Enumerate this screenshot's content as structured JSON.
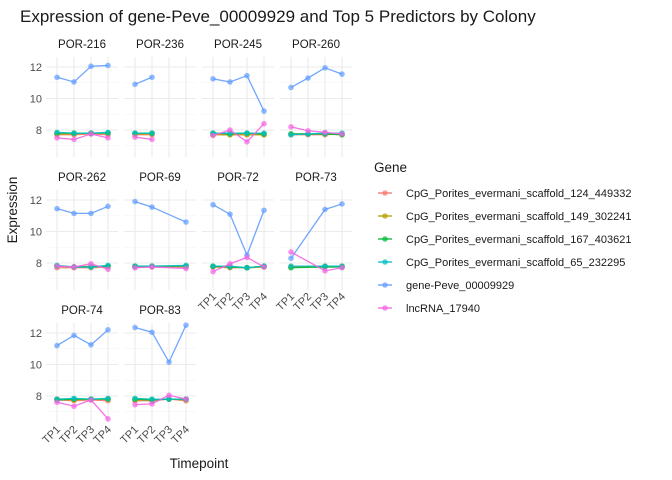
{
  "chart_data": {
    "type": "line",
    "title": "Expression of gene-Peve_00009929 and Top 5 Predictors by Colony",
    "xlabel": "Timepoint",
    "ylabel": "Expression",
    "x": [
      "TP1",
      "TP2",
      "TP3",
      "TP4"
    ],
    "yticks": [
      8,
      10,
      12
    ],
    "ylim": [
      6.3,
      12.65
    ],
    "grid": true,
    "legend": {
      "title": "Gene",
      "placement": "right"
    },
    "genes": [
      {
        "name": "CpG_Porites_evermani_scaffold_124_449332",
        "color": "#F8766D"
      },
      {
        "name": "CpG_Porites_evermani_scaffold_149_302241",
        "color": "#B79F00"
      },
      {
        "name": "CpG_Porites_evermani_scaffold_167_403621",
        "color": "#00BA38"
      },
      {
        "name": "CpG_Porites_evermani_scaffold_65_232295",
        "color": "#00BFC4"
      },
      {
        "name": "gene-Peve_00009929",
        "color": "#619CFF"
      },
      {
        "name": "lncRNA_17940",
        "color": "#F564E3"
      }
    ],
    "panels": [
      {
        "colony": "POR-216",
        "values": [
          [
            7.7,
            7.7,
            7.75,
            7.7
          ],
          [
            7.75,
            7.75,
            7.8,
            7.8
          ],
          [
            7.8,
            7.8,
            7.8,
            7.8
          ],
          [
            7.85,
            7.8,
            7.8,
            7.85
          ],
          [
            11.35,
            11.05,
            12.05,
            12.1
          ],
          [
            7.5,
            7.4,
            7.75,
            7.5
          ]
        ]
      },
      {
        "colony": "POR-236",
        "values": [
          [
            7.7,
            7.7,
            null,
            null
          ],
          [
            7.75,
            7.75,
            null,
            null
          ],
          [
            7.8,
            7.8,
            null,
            null
          ],
          [
            7.8,
            7.8,
            null,
            null
          ],
          [
            10.9,
            11.35,
            null,
            null
          ],
          [
            7.55,
            7.4,
            null,
            null
          ]
        ]
      },
      {
        "colony": "POR-245",
        "values": [
          [
            7.7,
            7.7,
            7.7,
            7.7
          ],
          [
            7.7,
            7.7,
            7.7,
            7.7
          ],
          [
            7.8,
            7.75,
            7.8,
            7.75
          ],
          [
            7.8,
            7.8,
            7.8,
            7.8
          ],
          [
            11.25,
            11.05,
            11.45,
            9.2
          ],
          [
            7.65,
            8.0,
            7.25,
            8.4
          ]
        ]
      },
      {
        "colony": "POR-260",
        "values": [
          [
            7.7,
            7.7,
            7.7,
            7.75
          ],
          [
            7.75,
            7.75,
            7.75,
            7.7
          ],
          [
            7.75,
            7.75,
            7.75,
            7.7
          ],
          [
            7.7,
            7.75,
            7.8,
            7.8
          ],
          [
            10.7,
            11.3,
            11.95,
            11.55
          ],
          [
            8.2,
            7.95,
            7.85,
            7.75
          ]
        ]
      },
      {
        "colony": "POR-262",
        "values": [
          [
            7.7,
            7.7,
            7.7,
            7.75
          ],
          [
            7.8,
            7.75,
            7.8,
            7.8
          ],
          [
            7.8,
            7.75,
            7.75,
            7.8
          ],
          [
            7.85,
            7.75,
            7.75,
            7.85
          ],
          [
            11.45,
            11.15,
            11.15,
            11.6
          ],
          [
            7.8,
            7.75,
            7.95,
            7.6
          ]
        ]
      },
      {
        "colony": "POR-69",
        "values": [
          [
            7.75,
            7.75,
            null,
            7.75
          ],
          [
            7.8,
            7.8,
            null,
            7.8
          ],
          [
            7.8,
            7.8,
            null,
            7.8
          ],
          [
            7.8,
            7.8,
            null,
            7.85
          ],
          [
            11.9,
            11.55,
            null,
            10.6
          ],
          [
            7.7,
            7.75,
            null,
            7.65
          ]
        ]
      },
      {
        "colony": "POR-72",
        "values": [
          [
            7.75,
            7.7,
            7.7,
            7.75
          ],
          [
            7.75,
            7.75,
            7.7,
            7.75
          ],
          [
            7.8,
            7.75,
            7.7,
            7.8
          ],
          [
            7.8,
            7.8,
            7.7,
            7.8
          ],
          [
            11.7,
            11.1,
            8.5,
            11.35
          ],
          [
            7.45,
            7.95,
            8.35,
            7.75
          ]
        ]
      },
      {
        "colony": "POR-73",
        "values": [
          [
            7.75,
            null,
            7.75,
            7.75
          ],
          [
            7.75,
            null,
            7.8,
            7.8
          ],
          [
            7.7,
            null,
            7.75,
            7.75
          ],
          [
            7.8,
            null,
            7.8,
            7.8
          ],
          [
            8.3,
            null,
            11.4,
            11.75
          ],
          [
            8.7,
            null,
            7.5,
            7.7
          ]
        ]
      },
      {
        "colony": "POR-74",
        "values": [
          [
            7.75,
            7.7,
            7.75,
            7.7
          ],
          [
            7.8,
            7.75,
            7.8,
            7.8
          ],
          [
            7.75,
            7.8,
            7.8,
            7.8
          ],
          [
            7.8,
            7.85,
            7.8,
            7.85
          ],
          [
            11.2,
            11.85,
            11.25,
            12.2
          ],
          [
            7.6,
            7.35,
            7.75,
            6.55
          ]
        ]
      },
      {
        "colony": "POR-83",
        "values": [
          [
            7.7,
            7.7,
            7.8,
            7.7
          ],
          [
            7.75,
            7.75,
            7.8,
            7.75
          ],
          [
            7.8,
            7.75,
            7.8,
            7.8
          ],
          [
            7.85,
            7.8,
            7.8,
            7.8
          ],
          [
            12.35,
            12.05,
            10.15,
            12.5
          ],
          [
            7.45,
            7.5,
            8.05,
            7.8
          ]
        ]
      }
    ]
  }
}
